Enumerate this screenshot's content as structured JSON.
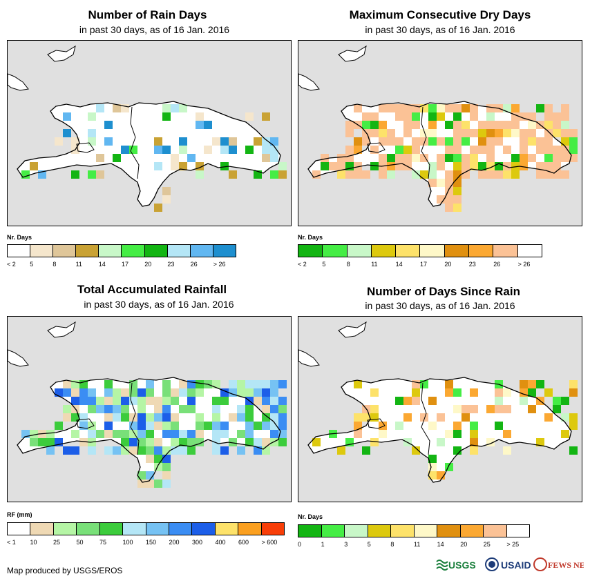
{
  "panels": [
    {
      "title": "Number of Rain Days",
      "subtitle": "in past 30 days, as of 16 Jan. 2016",
      "legend_title": "Nr. Days",
      "legend_colors": [
        "#ffffff",
        "#f5e6cc",
        "#dfc699",
        "#c9a234",
        "#c8f7c8",
        "#45ed45",
        "#13b513",
        "#b4e6f6",
        "#61b7f1",
        "#1e8fcf"
      ],
      "legend_labels": [
        "< 2",
        "5",
        "8",
        "11",
        "14",
        "17",
        "20",
        "23",
        "26",
        "> 26"
      ]
    },
    {
      "title": "Maximum Consecutive Dry Days",
      "subtitle": "in past 30 days, as of 16 Jan. 2016",
      "legend_title": "Nr. Days",
      "legend_colors": [
        "#13b513",
        "#45ed45",
        "#c8f7c8",
        "#ddc90e",
        "#fde26a",
        "#fef8c8",
        "#e09010",
        "#fba832",
        "#fbc296",
        "#ffffff"
      ],
      "legend_labels": [
        "< 2",
        "5",
        "8",
        "11",
        "14",
        "17",
        "20",
        "23",
        "26",
        "> 26"
      ]
    },
    {
      "title": "Total Accumulated Rainfall",
      "subtitle": "in past 30 days, as of 16 Jan. 2016",
      "legend_title": "RF (mm)",
      "legend_colors": [
        "#ffffff",
        "#efd9b4",
        "#b5f5a5",
        "#79e079",
        "#3ccc3c",
        "#b4e6f6",
        "#76c2f3",
        "#3b8df3",
        "#1c5ee8",
        "#fde26a",
        "#fba020",
        "#f83e08"
      ],
      "legend_labels": [
        "< 1",
        "10",
        "25",
        "50",
        "75",
        "100",
        "150",
        "200",
        "300",
        "400",
        "600",
        "> 600"
      ]
    },
    {
      "title": "Number of Days Since Rain",
      "subtitle": "in past 30 days, as of 16 Jan. 2016",
      "legend_title": "Nr. Days",
      "legend_colors": [
        "#13b513",
        "#45ed45",
        "#c8f7c8",
        "#ddc90e",
        "#fde26a",
        "#fef8c8",
        "#e09010",
        "#fba832",
        "#fbc296",
        "#ffffff"
      ],
      "legend_labels": [
        "0",
        "1",
        "3",
        "5",
        "8",
        "11",
        "14",
        "20",
        "25",
        "> 25"
      ]
    }
  ],
  "footer": "Map produced by USGS/EROS",
  "logos": {
    "usgs": "USGS",
    "usaid": "USAID",
    "fewsnet": "FEWS NET"
  }
}
